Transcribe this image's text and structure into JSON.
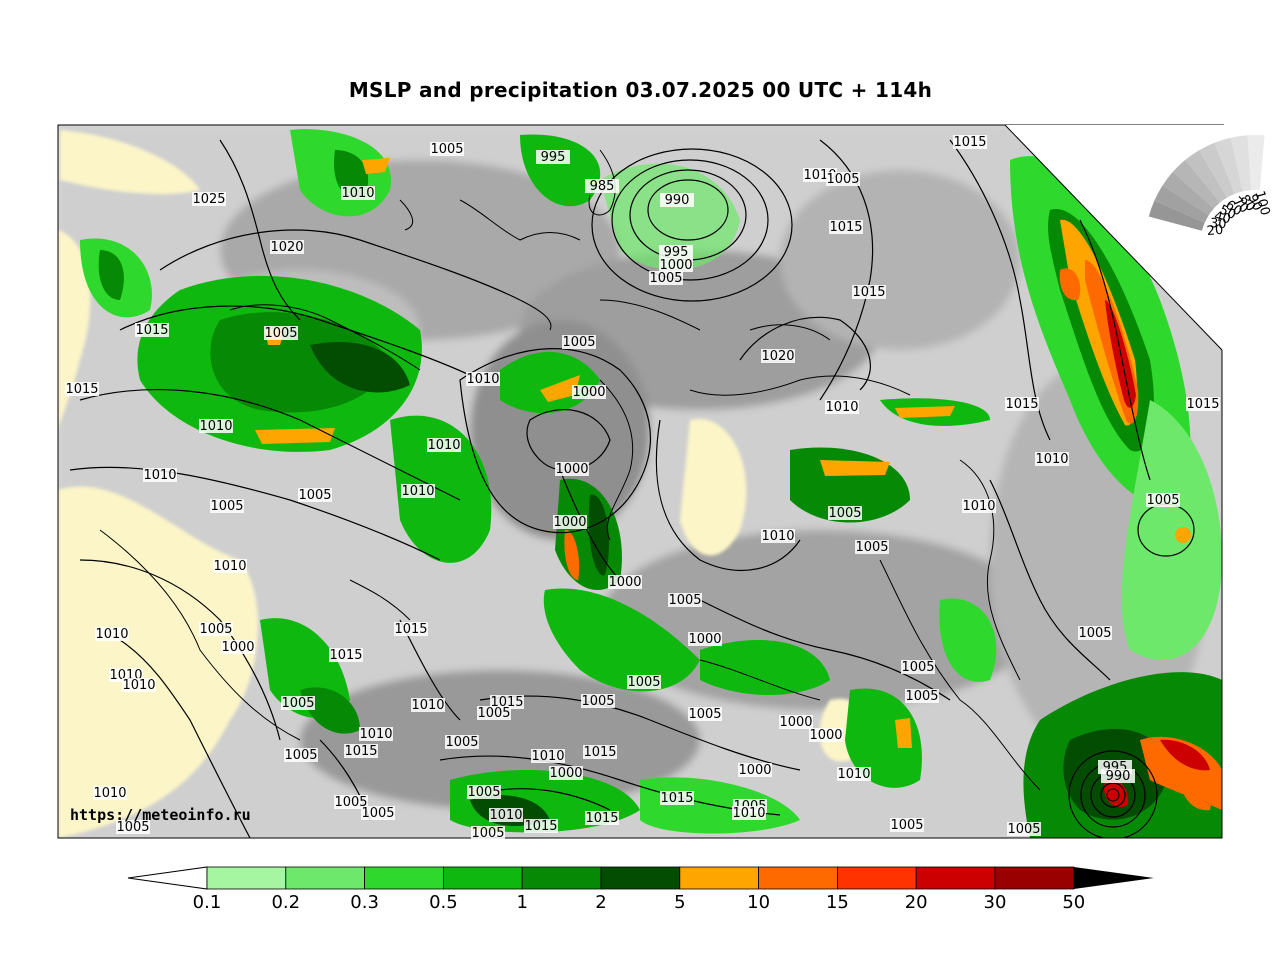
{
  "title": "MSLP and precipitation 03.07.2025 00 UTC + 114h",
  "credit": "https://meteoinfo.ru",
  "colorbar": {
    "labels": [
      "0.1",
      "0.2",
      "0.3",
      "0.5",
      "1",
      "2",
      "5",
      "10",
      "15",
      "20",
      "30",
      "50"
    ],
    "colors": [
      "#a6f5a0",
      "#6ee86a",
      "#2fd82c",
      "#0fb80f",
      "#068a06",
      "#034d03",
      "#ffa500",
      "#ff6a00",
      "#ff3300",
      "#cc0000",
      "#990000"
    ]
  },
  "cloud_scale": {
    "labels": [
      "100",
      "90",
      "80",
      "70",
      "60",
      "50",
      "40",
      "30",
      "20"
    ]
  },
  "isobar_labels": [
    "1005",
    "995",
    "985",
    "990",
    "995",
    "1000",
    "1005",
    "1010",
    "1005",
    "1015",
    "1015",
    "1015",
    "1025",
    "1010",
    "1020",
    "1015",
    "1005",
    "1015",
    "1005",
    "1010",
    "1000",
    "1020",
    "1010",
    "1010",
    "1015",
    "1015",
    "1010",
    "1010",
    "1000",
    "1010",
    "1010",
    "1005",
    "1005",
    "1005",
    "1010",
    "1000",
    "1000",
    "1010",
    "1005",
    "1005",
    "1010",
    "1010",
    "1005",
    "1000",
    "1005",
    "1015",
    "1015",
    "1010",
    "1000",
    "1005",
    "1005",
    "1010",
    "1005",
    "1005",
    "1005",
    "1005",
    "1015",
    "1010",
    "1010",
    "1005",
    "1005",
    "1015",
    "1005",
    "1005",
    "1000",
    "1010",
    "1000",
    "1000",
    "1015",
    "1005",
    "1010",
    "1000",
    "1005",
    "1005",
    "1015",
    "1010",
    "1005",
    "1005",
    "1015",
    "1010",
    "1015",
    "1005",
    "1010",
    "1005",
    "1005",
    "995",
    "990"
  ]
}
